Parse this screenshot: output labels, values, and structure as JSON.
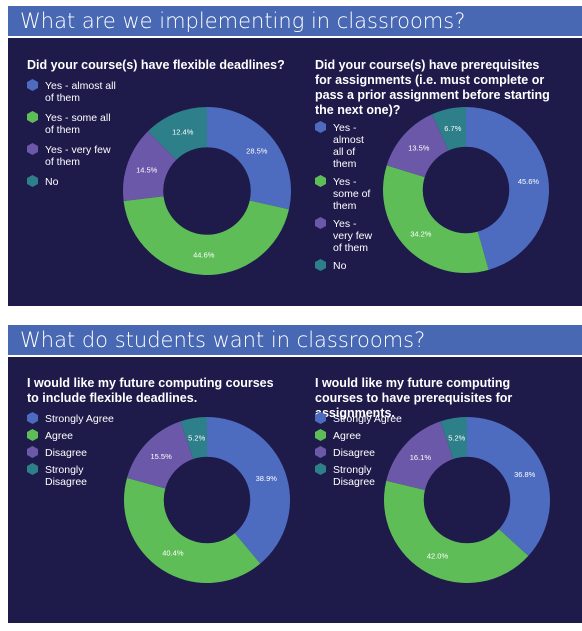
{
  "sections": [
    {
      "title": "What are we implementing in classrooms?",
      "charts": [
        {
          "question": "Did your course(s) have flexible deadlines?",
          "legend": [
            "Yes - almost all of them",
            "Yes - some all of them",
            "Yes - very few of them",
            "No"
          ]
        },
        {
          "question": "Did your course(s) have prerequisites for assignments (i.e. must complete or pass a prior assignment before starting the next one)?",
          "legend": [
            "Yes - almost all of them",
            "Yes - some of them",
            "Yes - very few of them",
            "No"
          ]
        }
      ]
    },
    {
      "title": "What do students want in classrooms?",
      "charts": [
        {
          "question": "I would like my future computing courses to include flexible deadlines.",
          "legend": [
            "Strongly Agree",
            "Agree",
            "Disagree",
            "Strongly Disagree"
          ]
        },
        {
          "question": "I would like my future computing courses to have prerequisites for assignments.",
          "legend": [
            "Strongly Agree",
            "Agree",
            "Disagree",
            "Strongly Disagree"
          ]
        }
      ]
    }
  ],
  "colors": {
    "banner": "#4868b4",
    "panel": "#1e1b4b",
    "series": [
      "#4d6bbf",
      "#5fbd58",
      "#6c58a8",
      "#2d7f8a"
    ]
  },
  "chart_data": [
    {
      "type": "pie",
      "title": "Did your course(s) have flexible deadlines?",
      "categories": [
        "Yes - almost all of them",
        "Yes - some all of them",
        "Yes - very few of them",
        "No"
      ],
      "values": [
        28.5,
        44.6,
        14.5,
        12.4
      ],
      "labels": [
        "28.5%",
        "44.6%",
        "14.5%",
        "12.4%"
      ],
      "donut": true
    },
    {
      "type": "pie",
      "title": "Did your course(s) have prerequisites for assignments (i.e. must complete or pass a prior assignment before starting the next one)?",
      "categories": [
        "Yes - almost all of them",
        "Yes - some of them",
        "Yes - very few of them",
        "No"
      ],
      "values": [
        45.6,
        34.2,
        13.5,
        6.7
      ],
      "labels": [
        "45.6%",
        "34.2%",
        "13.5%",
        "6.7%"
      ],
      "donut": true
    },
    {
      "type": "pie",
      "title": "I would like my future computing courses to include flexible deadlines.",
      "categories": [
        "Strongly Agree",
        "Agree",
        "Disagree",
        "Strongly Disagree"
      ],
      "values": [
        38.9,
        40.4,
        15.5,
        5.2
      ],
      "labels": [
        "38.9%",
        "40.4%",
        "15.5%",
        "5.2%"
      ],
      "donut": true
    },
    {
      "type": "pie",
      "title": "I would like my future computing courses to have prerequisites for assignments.",
      "categories": [
        "Strongly Agree",
        "Agree",
        "Disagree",
        "Strongly Disagree"
      ],
      "values": [
        36.8,
        42.0,
        16.1,
        5.2
      ],
      "labels": [
        "36.8%",
        "42.0%",
        "16.1%",
        "5.2%"
      ],
      "donut": true
    }
  ]
}
